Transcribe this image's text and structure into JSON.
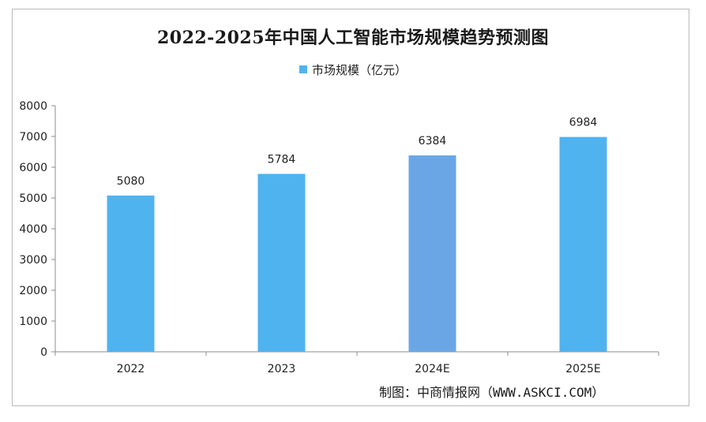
{
  "chart_data": {
    "type": "bar",
    "title": "2022-2025年中国人工智能市场规模趋势预测图",
    "categories": [
      "2022",
      "2023",
      "2024E",
      "2025E"
    ],
    "series": [
      {
        "name": "市场规模（亿元）",
        "values": [
          5080,
          5784,
          6384,
          6984
        ],
        "color": "#4fb3f0"
      }
    ],
    "highlight_color": "#6aa6e6",
    "highlight_index": 2,
    "ylim": [
      0,
      8000
    ],
    "yticks": [
      0,
      1000,
      2000,
      3000,
      4000,
      5000,
      6000,
      7000,
      8000
    ],
    "xlabel": "",
    "ylabel": "",
    "grid": false,
    "legend_position": "top-center"
  },
  "credit": "制图：中商情报网（WWW.ASKCI.COM）",
  "colors": {
    "axis": "#8c8c8c",
    "text": "#222222"
  }
}
